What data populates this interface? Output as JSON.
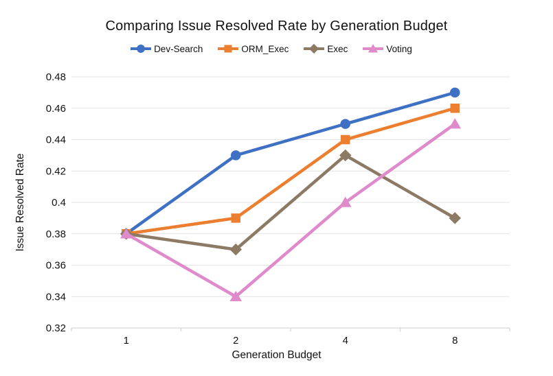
{
  "chart_data": {
    "type": "line",
    "title": "Comparing Issue Resolved Rate by Generation Budget",
    "xlabel": "Generation Budget",
    "ylabel": "Issue Resolved Rate",
    "categories": [
      "1",
      "2",
      "4",
      "8"
    ],
    "series": [
      {
        "name": "Dev-Search",
        "marker": "circle",
        "color": "#3E71C4",
        "values": [
          0.38,
          0.43,
          0.45,
          0.47
        ]
      },
      {
        "name": "ORM_Exec",
        "marker": "square",
        "color": "#EC7E2F",
        "values": [
          0.38,
          0.39,
          0.44,
          0.46
        ]
      },
      {
        "name": "Exec",
        "marker": "diamond",
        "color": "#8C7A64",
        "values": [
          0.38,
          0.37,
          0.43,
          0.39
        ]
      },
      {
        "name": "Voting",
        "marker": "triangle",
        "color": "#DE8ACB",
        "values": [
          0.38,
          0.34,
          0.4,
          0.45
        ]
      }
    ],
    "ylim": [
      0.32,
      0.48
    ],
    "yticks": [
      0.32,
      0.34,
      0.36,
      0.38,
      0.4,
      0.42,
      0.44,
      0.46,
      0.48
    ],
    "ytick_labels": [
      "0.32",
      "0.34",
      "0.36",
      "0.38",
      "0.4",
      "0.42",
      "0.44",
      "0.46",
      "0.48"
    ],
    "grid": true,
    "legend_position": "top-center",
    "style": {
      "grid_color": "#E4E4E4",
      "axis_color": "#D6D6D6",
      "text_color": "#111111",
      "line_width": 4.5
    }
  }
}
